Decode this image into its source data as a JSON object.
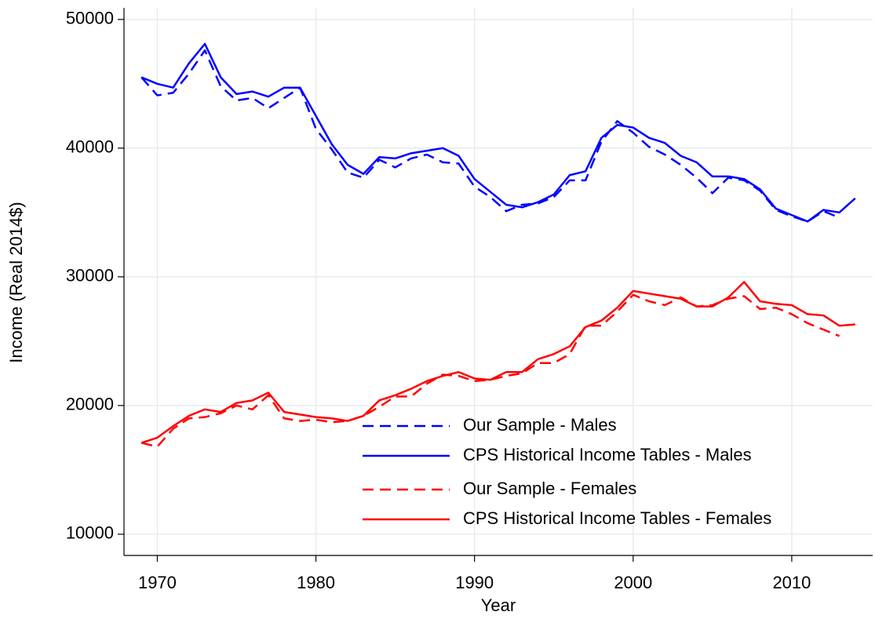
{
  "chart_data": {
    "type": "line",
    "x_label": "Year",
    "y_label": "Income (Real 2014$)",
    "x": [
      1969,
      1970,
      1971,
      1972,
      1973,
      1974,
      1975,
      1976,
      1977,
      1978,
      1979,
      1980,
      1981,
      1982,
      1983,
      1984,
      1985,
      1986,
      1987,
      1988,
      1989,
      1990,
      1991,
      1992,
      1993,
      1994,
      1995,
      1996,
      1997,
      1998,
      1999,
      2000,
      2001,
      2002,
      2003,
      2004,
      2005,
      2006,
      2007,
      2008,
      2009,
      2010,
      2011,
      2012,
      2013,
      2014
    ],
    "series": [
      {
        "name": "Our Sample - Males",
        "color": "#0000ff",
        "dash": true,
        "values": [
          45500,
          44100,
          44300,
          45800,
          47600,
          44800,
          43700,
          43900,
          43100,
          43900,
          44700,
          41500,
          39900,
          38100,
          37700,
          39100,
          38500,
          39200,
          39500,
          38900,
          38800,
          37000,
          36200,
          35100,
          35600,
          35700,
          36200,
          37500,
          37500,
          40500,
          42100,
          41200,
          40100,
          39500,
          38700,
          37700,
          36500,
          37700,
          37500,
          36700,
          35200,
          34700,
          34300,
          35100,
          34600,
          null
        ]
      },
      {
        "name": "CPS Historical Income Tables - Males",
        "color": "#0000ff",
        "dash": false,
        "values": [
          45500,
          45000,
          44700,
          46600,
          48100,
          45500,
          44200,
          44400,
          44000,
          44700,
          44700,
          42500,
          40300,
          38700,
          38000,
          39300,
          39200,
          39600,
          39800,
          40000,
          39400,
          37600,
          36600,
          35600,
          35400,
          35800,
          36400,
          37900,
          38200,
          40800,
          41800,
          41600,
          40800,
          40400,
          39400,
          38900,
          37800,
          37800,
          37600,
          36800,
          35300,
          34800,
          34300,
          35200,
          35000,
          36100
        ]
      },
      {
        "name": "Our Sample - Females",
        "color": "#ff0000",
        "dash": true,
        "values": [
          17100,
          16800,
          18200,
          19000,
          19100,
          19400,
          20000,
          19700,
          20800,
          19000,
          18800,
          18900,
          18700,
          18800,
          19200,
          19900,
          20700,
          20700,
          21700,
          22400,
          22300,
          21900,
          22000,
          22300,
          22500,
          23300,
          23300,
          24000,
          26200,
          26200,
          27300,
          28600,
          28100,
          27800,
          28400,
          27700,
          27800,
          28300,
          28500,
          27500,
          27600,
          27100,
          26400,
          25900,
          25400,
          null
        ]
      },
      {
        "name": "CPS Historical Income Tables - Females",
        "color": "#ff0000",
        "dash": false,
        "values": [
          17100,
          17500,
          18400,
          19200,
          19700,
          19500,
          20200,
          20400,
          21000,
          19500,
          19300,
          19100,
          19000,
          18800,
          19200,
          20400,
          20800,
          21300,
          21900,
          22300,
          22600,
          22100,
          22000,
          22600,
          22600,
          23600,
          24000,
          24600,
          26100,
          26600,
          27600,
          28900,
          28700,
          28500,
          28300,
          27700,
          27700,
          28400,
          29600,
          28100,
          27900,
          27800,
          27100,
          27000,
          26200,
          26300
        ]
      }
    ],
    "xlim": [
      1967.9,
      2015.1
    ],
    "xticks": [
      1970,
      1980,
      1990,
      2000,
      2010
    ],
    "ylim": [
      8350,
      50900
    ],
    "yticks": [
      10000,
      20000,
      30000,
      40000,
      50000
    ],
    "grid": true,
    "legend": "lower right"
  }
}
